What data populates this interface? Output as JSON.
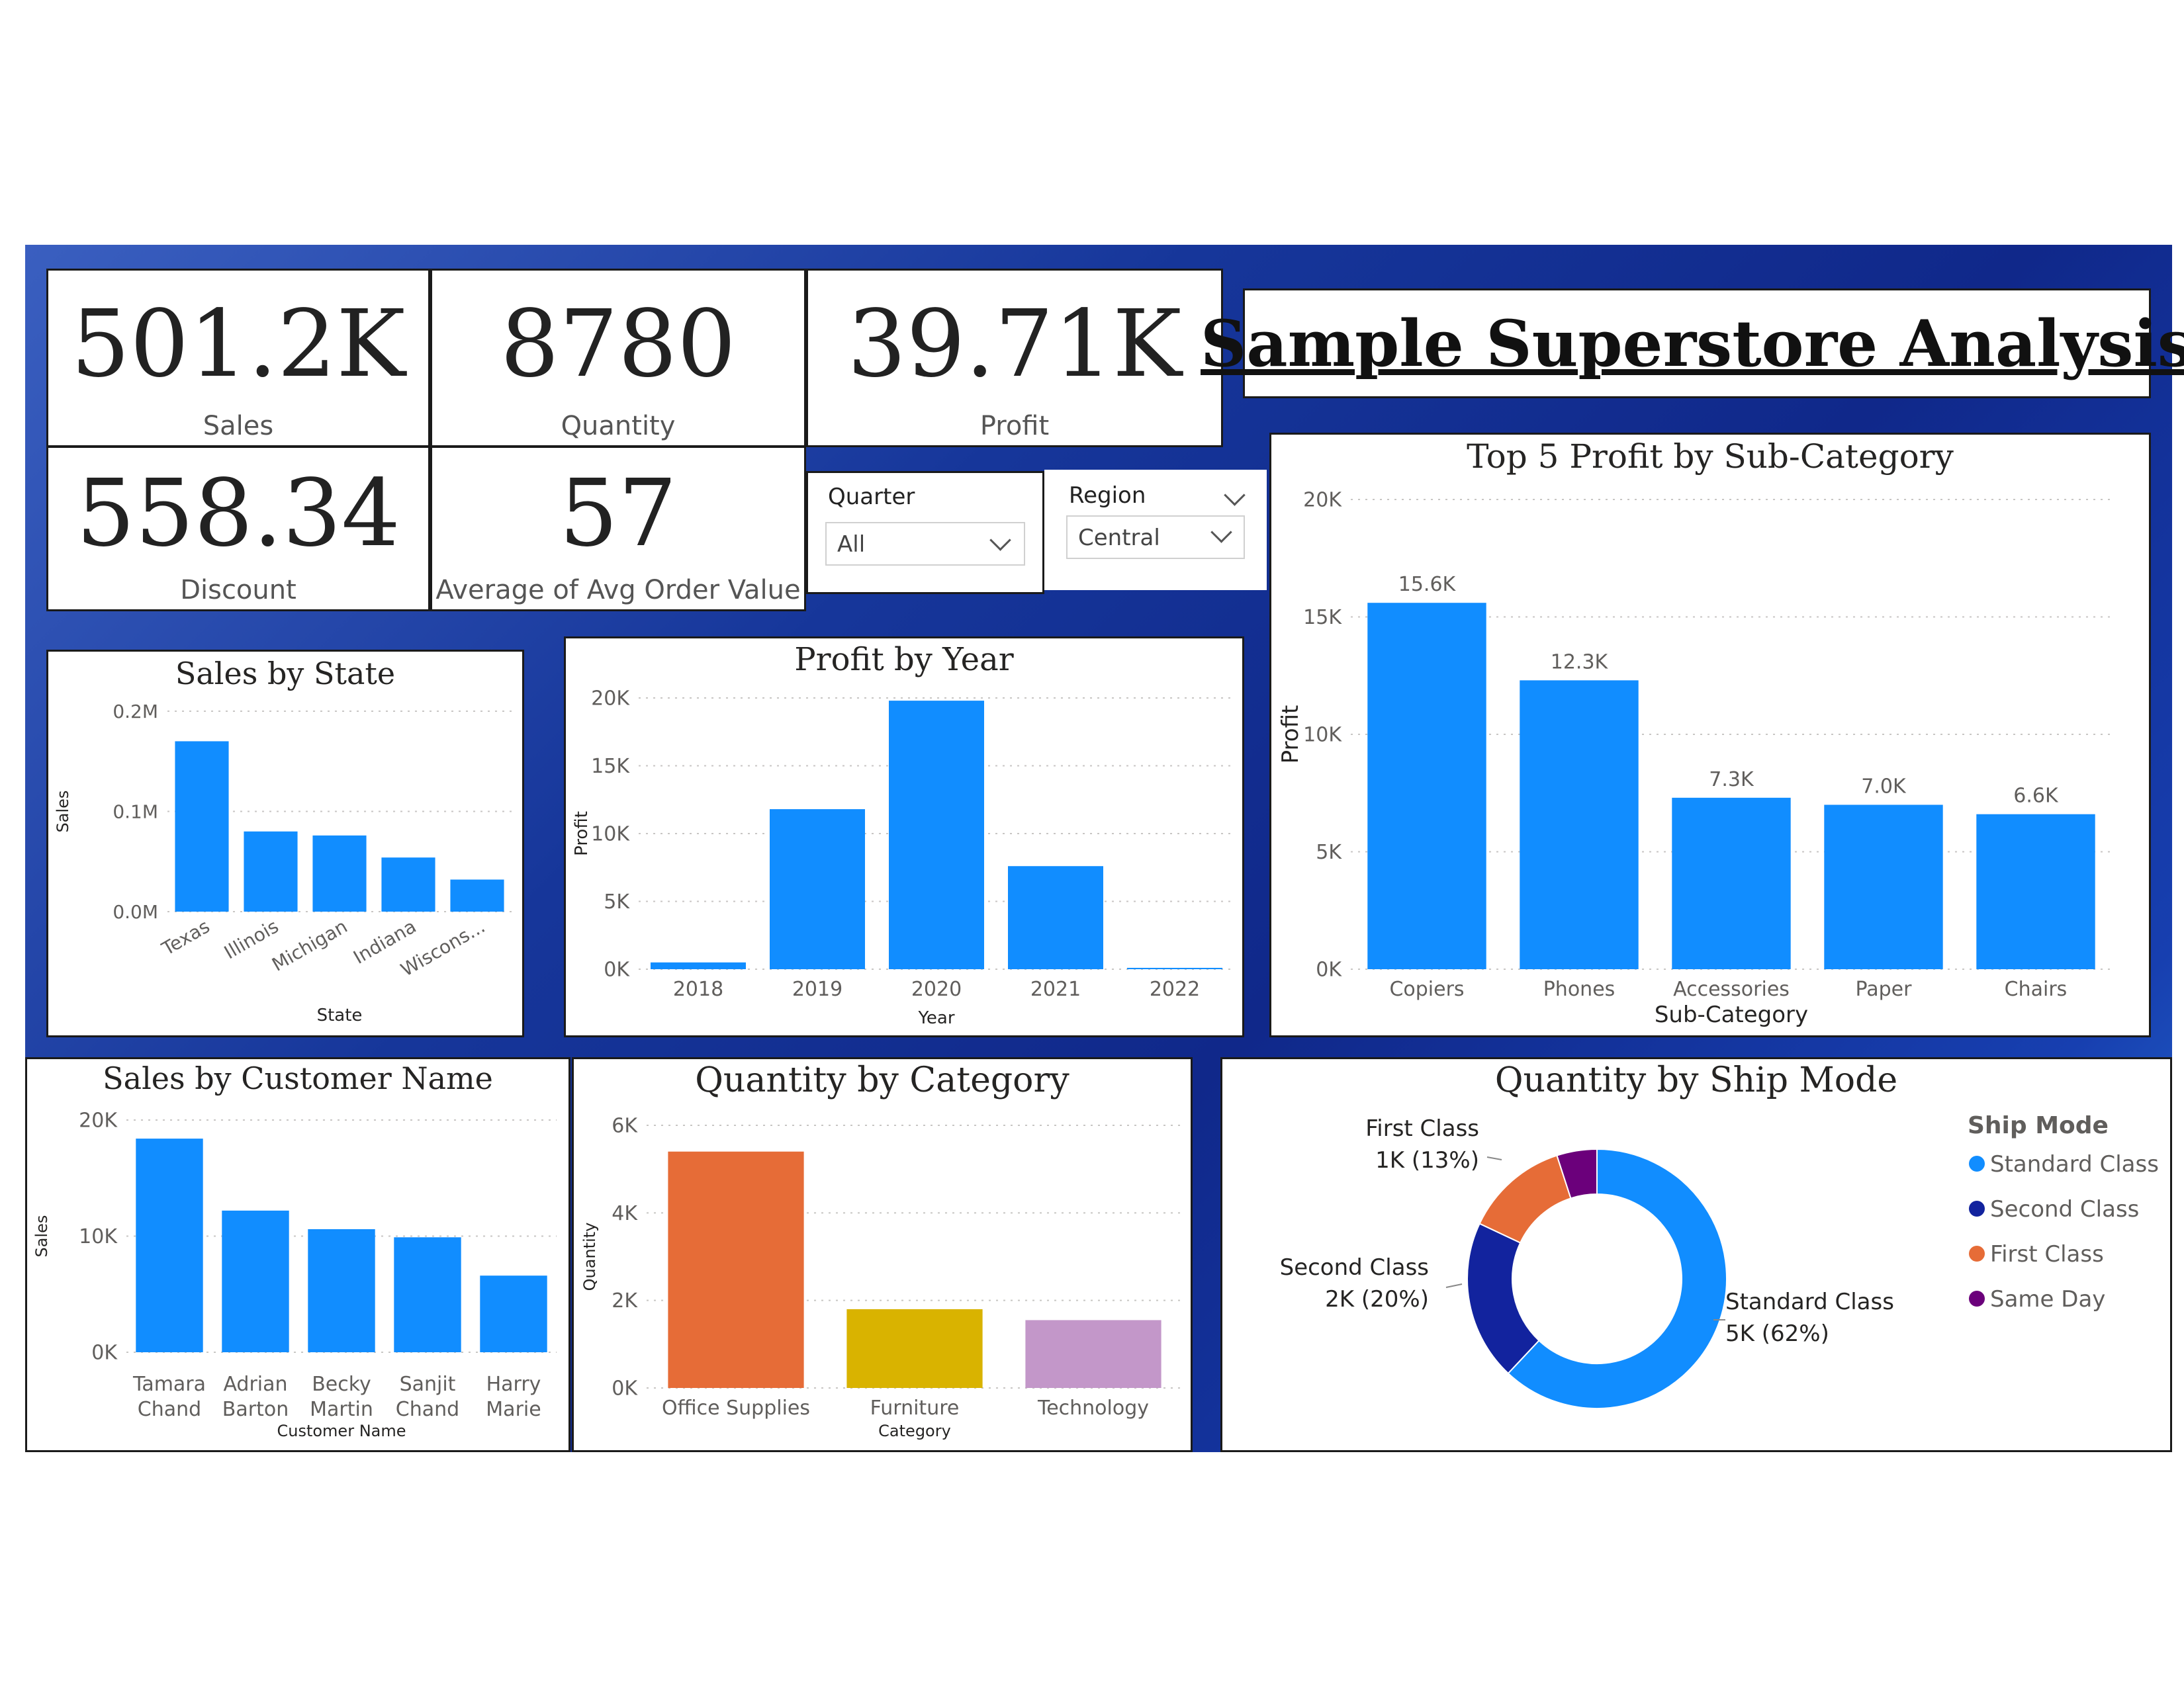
{
  "dashboard": {
    "title": "Sample Superstore Analysis"
  },
  "kpis": {
    "sales": {
      "value": "501.2K",
      "label": "Sales"
    },
    "quantity": {
      "value": "8780",
      "label": "Quantity"
    },
    "profit": {
      "value": "39.71K",
      "label": "Profit"
    },
    "discount": {
      "value": "558.34",
      "label": "Discount"
    },
    "avg_order": {
      "value": "57",
      "label": "Average of Avg Order Value"
    }
  },
  "slicers": {
    "quarter": {
      "label": "Quarter",
      "value": "All"
    },
    "region": {
      "label": "Region",
      "value": "Central"
    }
  },
  "colors": {
    "accent": "#118dff",
    "standard": "#118dff",
    "second": "#12239e",
    "first": "#e66c37",
    "sameday": "#6b007b",
    "office": "#e66c37",
    "furniture": "#d9b300",
    "technology": "#c397c9"
  },
  "chart_data": [
    {
      "id": "sales_by_state",
      "type": "bar",
      "title": "Sales by State",
      "xlabel": "State",
      "ylabel": "Sales",
      "categories": [
        "Texas",
        "Illinois",
        "Michigan",
        "Indiana",
        "Wiscons..."
      ],
      "values": [
        170000,
        80000,
        76000,
        54000,
        32000
      ],
      "ylim": [
        0,
        200000
      ],
      "yticks": [
        0,
        100000,
        200000
      ],
      "ytick_labels": [
        "0.0M",
        "0.1M",
        "0.2M"
      ]
    },
    {
      "id": "profit_by_year",
      "type": "bar",
      "title": "Profit by Year",
      "xlabel": "Year",
      "ylabel": "Profit",
      "categories": [
        "2018",
        "2019",
        "2020",
        "2021",
        "2022"
      ],
      "values": [
        500,
        11800,
        19800,
        7600,
        100
      ],
      "ylim": [
        0,
        20000
      ],
      "yticks": [
        0,
        5000,
        10000,
        15000,
        20000
      ],
      "ytick_labels": [
        "0K",
        "5K",
        "10K",
        "15K",
        "20K"
      ]
    },
    {
      "id": "top5_profit",
      "type": "bar",
      "title": "Top 5 Profit by Sub-Category",
      "xlabel": "Sub-Category",
      "ylabel": "Profit",
      "categories": [
        "Copiers",
        "Phones",
        "Accessories",
        "Paper",
        "Chairs"
      ],
      "values": [
        15600,
        12300,
        7300,
        7000,
        6600
      ],
      "data_labels": [
        "15.6K",
        "12.3K",
        "7.3K",
        "7.0K",
        "6.6K"
      ],
      "ylim": [
        0,
        20000
      ],
      "yticks": [
        0,
        5000,
        10000,
        15000,
        20000
      ],
      "ytick_labels": [
        "0K",
        "5K",
        "10K",
        "15K",
        "20K"
      ]
    },
    {
      "id": "sales_by_customer",
      "type": "bar",
      "title": "Sales by Customer Name",
      "xlabel": "Customer Name",
      "ylabel": "Sales",
      "categories": [
        [
          "Tamara",
          "Chand"
        ],
        [
          "Adrian",
          "Barton"
        ],
        [
          "Becky",
          "Martin"
        ],
        [
          "Sanjit",
          "Chand"
        ],
        [
          "Harry",
          "Marie"
        ]
      ],
      "values": [
        18400,
        12200,
        10600,
        9900,
        6600
      ],
      "ylim": [
        0,
        20000
      ],
      "yticks": [
        0,
        10000,
        20000
      ],
      "ytick_labels": [
        "0K",
        "10K",
        "20K"
      ]
    },
    {
      "id": "quantity_by_category",
      "type": "bar",
      "title": "Quantity by Category",
      "xlabel": "Category",
      "ylabel": "Quantity",
      "categories": [
        "Office Supplies",
        "Furniture",
        "Technology"
      ],
      "values": [
        5400,
        1800,
        1550
      ],
      "colors": [
        "#e66c37",
        "#d9b300",
        "#c397c9"
      ],
      "ylim": [
        0,
        6000
      ],
      "yticks": [
        0,
        2000,
        4000,
        6000
      ],
      "ytick_labels": [
        "0K",
        "2K",
        "4K",
        "6K"
      ]
    },
    {
      "id": "quantity_by_ship_mode",
      "type": "pie",
      "title": "Quantity by Ship Mode",
      "legend_title": "Ship Mode",
      "legend_position": "right",
      "slices": [
        {
          "name": "Standard Class",
          "value": 62,
          "color": "#118dff",
          "label1": "Standard Class",
          "label2": "5K (62%)"
        },
        {
          "name": "Second Class",
          "value": 20,
          "color": "#12239e",
          "label1": "Second Class",
          "label2": "2K (20%)"
        },
        {
          "name": "First Class",
          "value": 13,
          "color": "#e66c37",
          "label1": "First Class",
          "label2": "1K (13%)"
        },
        {
          "name": "Same Day",
          "value": 5,
          "color": "#6b007b"
        }
      ]
    }
  ]
}
